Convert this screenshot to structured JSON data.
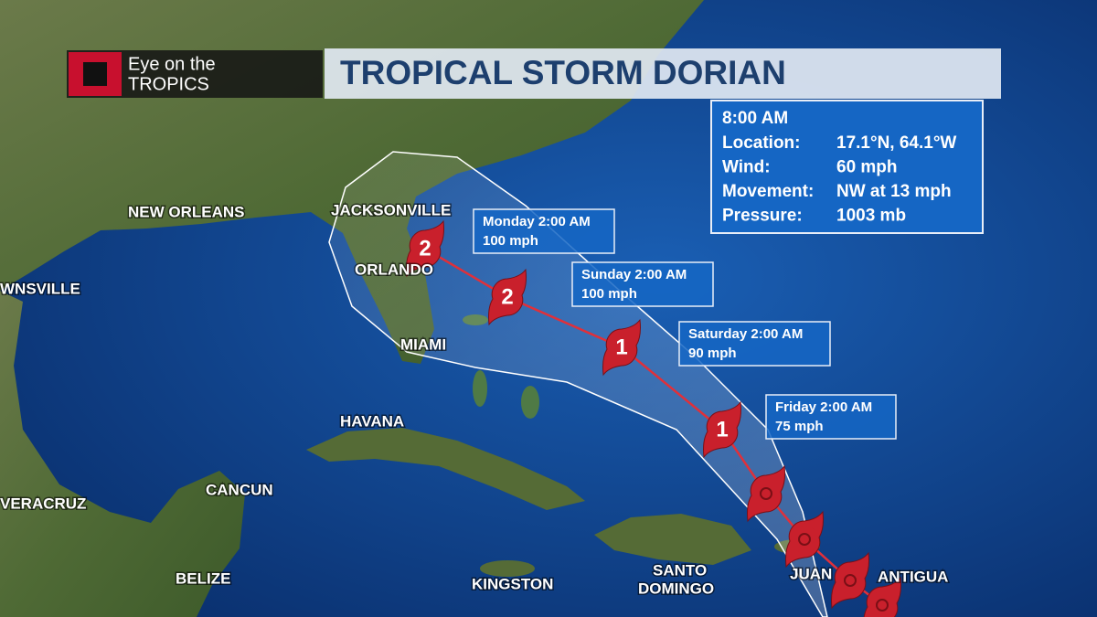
{
  "header": {
    "brand_line1": "Eye on the",
    "brand_line2": "TROPICS",
    "title": "TROPICAL STORM DORIAN"
  },
  "info": {
    "time": "8:00 AM",
    "rows": [
      [
        "Location:",
        "17.1°N, 64.1°W"
      ],
      [
        "Wind:",
        "60 mph"
      ],
      [
        "Movement:",
        "NW at 13 mph"
      ],
      [
        "Pressure:",
        "1003 mb"
      ]
    ]
  },
  "forecast": [
    {
      "time": "Monday 2:00 AM",
      "wind": "100 mph"
    },
    {
      "time": "Sunday 2:00 AM",
      "wind": "100 mph"
    },
    {
      "time": "Saturday 2:00 AM",
      "wind": "90 mph"
    },
    {
      "time": "Friday 2:00 AM",
      "wind": "75 mph"
    }
  ],
  "storm_categories": [
    2,
    2,
    1,
    1
  ],
  "cities": [
    "NEW ORLEANS",
    "JACKSONVILLE",
    "ORLANDO",
    "MIAMI",
    "WNSVILLE",
    "HAVANA",
    "CANCUN",
    "VERACRUZ",
    "BELIZE",
    "KINGSTON",
    "SANTO",
    "DOMINGO",
    "JUAN",
    "ANTIGUA"
  ]
}
